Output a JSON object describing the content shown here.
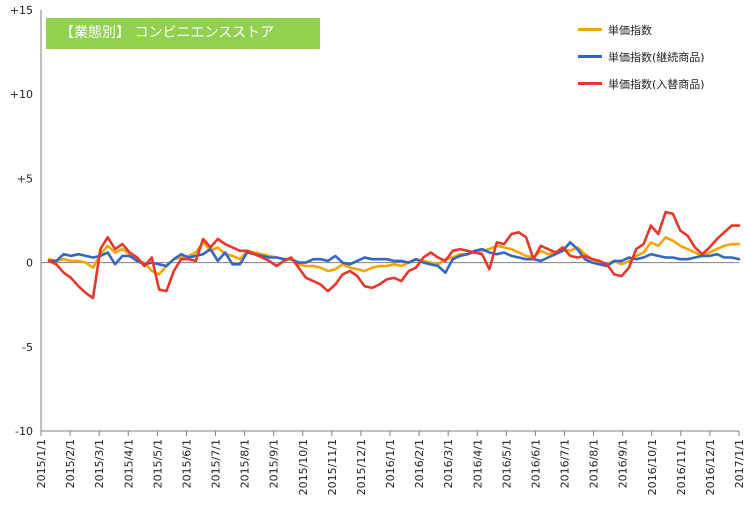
{
  "header": {
    "badge_text": "【業態別】 コンビニエンスストア"
  },
  "colors": {
    "orange": "#f5a400",
    "blue": "#3566c6",
    "red": "#e8372c",
    "badge_bg": "#92d050"
  },
  "chart_data": {
    "type": "line",
    "title": "【業態別】 コンビニエンスストア",
    "ylim": [
      -10,
      15
    ],
    "yticks": [
      {
        "value": 15,
        "label": "+15"
      },
      {
        "value": 10,
        "label": "+10"
      },
      {
        "value": 5,
        "label": "+5"
      },
      {
        "value": 0,
        "label": "0"
      },
      {
        "value": -5,
        "label": "-5"
      },
      {
        "value": -10,
        "label": "-10"
      }
    ],
    "xticks": [
      "2015/1/1",
      "2015/2/1",
      "2015/3/1",
      "2015/4/1",
      "2015/5/1",
      "2015/6/1",
      "2015/7/1",
      "2015/8/1",
      "2015/9/1",
      "2015/10/1",
      "2015/11/1",
      "2015/12/1",
      "2016/1/1",
      "2016/2/1",
      "2016/3/1",
      "2016/4/1",
      "2016/5/1",
      "2016/6/1",
      "2016/7/1",
      "2016/8/1",
      "2016/9/1",
      "2016/10/1",
      "2016/11/1",
      "2016/12/1",
      "2017/1/1"
    ],
    "grid": "zero-line",
    "legend_position": "top-right",
    "series": [
      {
        "name": "単価指数",
        "color": "#f5a400",
        "values": [
          0.2,
          0.1,
          0.2,
          0.1,
          0.1,
          0,
          -0.3,
          0.5,
          1.0,
          0.6,
          0.8,
          0.5,
          0.1,
          0,
          -0.5,
          -0.7,
          -0.2,
          0.2,
          0.3,
          0.4,
          0.6,
          1.2,
          0.7,
          0.9,
          0.5,
          0.4,
          0.2,
          0.7,
          0.6,
          0.5,
          0.4,
          0.3,
          0.2,
          0.2,
          -0.1,
          -0.2,
          -0.2,
          -0.3,
          -0.5,
          -0.4,
          -0.1,
          -0.3,
          -0.4,
          -0.5,
          -0.3,
          -0.2,
          -0.2,
          -0.1,
          -0.2,
          0,
          0.2,
          0.1,
          0,
          -0.1,
          0.2,
          0.3,
          0.5,
          0.5,
          0.6,
          0.7,
          0.8,
          1.0,
          0.9,
          0.8,
          0.6,
          0.4,
          0.3,
          0.7,
          0.5,
          0.6,
          0.8,
          0.7,
          0.9,
          0.5,
          0.2,
          0,
          -0.1,
          0.1,
          -0.1,
          0.1,
          0.4,
          0.6,
          1.2,
          1.0,
          1.5,
          1.3,
          1.0,
          0.8,
          0.6,
          0.4,
          0.6,
          0.8,
          1.0,
          1.1,
          1.1
        ]
      },
      {
        "name": "単価指数(継続商品)",
        "color": "#3566c6",
        "values": [
          0.1,
          0.1,
          0.5,
          0.4,
          0.5,
          0.4,
          0.3,
          0.4,
          0.6,
          -0.1,
          0.4,
          0.4,
          0.1,
          -0.1,
          0,
          -0.1,
          -0.2,
          0.2,
          0.5,
          0.3,
          0.4,
          0.5,
          0.8,
          0.1,
          0.6,
          -0.1,
          -0.1,
          0.6,
          0.5,
          0.4,
          0.3,
          0.3,
          0.2,
          0.2,
          0,
          0,
          0.2,
          0.2,
          0.1,
          0.4,
          0,
          -0.1,
          0.1,
          0.3,
          0.2,
          0.2,
          0.2,
          0.1,
          0.1,
          0,
          0.2,
          0,
          -0.1,
          -0.2,
          -0.6,
          0.2,
          0.4,
          0.5,
          0.7,
          0.8,
          0.6,
          0.5,
          0.6,
          0.4,
          0.3,
          0.2,
          0.2,
          0.1,
          0.3,
          0.5,
          0.7,
          1.2,
          0.8,
          0.2,
          0,
          -0.1,
          -0.2,
          0.1,
          0.1,
          0.3,
          0.2,
          0.3,
          0.5,
          0.4,
          0.3,
          0.3,
          0.2,
          0.2,
          0.3,
          0.4,
          0.4,
          0.5,
          0.3,
          0.3,
          0.2
        ]
      },
      {
        "name": "単価指数(入替商品)",
        "color": "#e8372c",
        "values": [
          0.1,
          -0.1,
          -0.6,
          -0.9,
          -1.4,
          -1.8,
          -2.1,
          0.8,
          1.5,
          0.8,
          1.1,
          0.6,
          0.3,
          -0.2,
          0.3,
          -1.6,
          -1.7,
          -0.5,
          0.2,
          0.2,
          0.1,
          1.4,
          0.9,
          1.4,
          1.1,
          0.9,
          0.7,
          0.7,
          0.5,
          0.3,
          0.1,
          -0.2,
          0.1,
          0.3,
          -0.3,
          -0.9,
          -1.1,
          -1.3,
          -1.7,
          -1.3,
          -0.7,
          -0.5,
          -0.8,
          -1.4,
          -1.5,
          -1.3,
          -1.0,
          -0.9,
          -1.1,
          -0.5,
          -0.3,
          0.3,
          0.6,
          0.3,
          0.1,
          0.7,
          0.8,
          0.7,
          0.6,
          0.5,
          -0.4,
          1.2,
          1.1,
          1.7,
          1.8,
          1.5,
          0.2,
          1.0,
          0.8,
          0.6,
          0.9,
          0.4,
          0.3,
          0.4,
          0.2,
          0.1,
          -0.1,
          -0.7,
          -0.8,
          -0.3,
          0.8,
          1.1,
          2.2,
          1.7,
          3.0,
          2.9,
          1.9,
          1.6,
          0.9,
          0.5,
          0.9,
          1.4,
          1.8,
          2.2,
          2.2
        ]
      }
    ]
  }
}
